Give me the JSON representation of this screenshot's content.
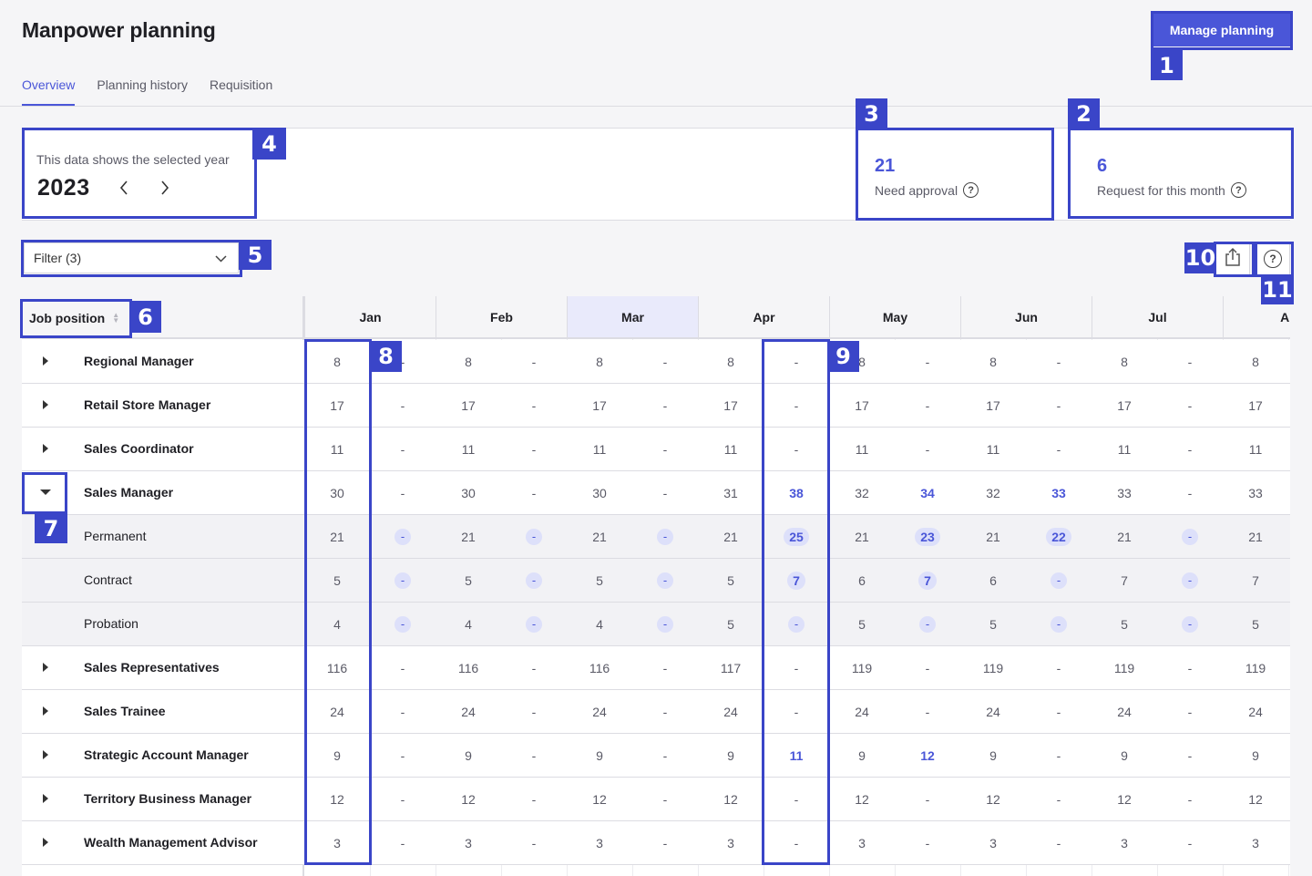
{
  "header": {
    "title": "Manpower planning",
    "manage_button": "Manage planning"
  },
  "tabs": [
    {
      "label": "Overview",
      "active": true
    },
    {
      "label": "Planning history",
      "active": false
    },
    {
      "label": "Requisition",
      "active": false
    }
  ],
  "year_selector": {
    "caption": "This data shows the selected year",
    "year": "2023",
    "prev_icon": "chevron-left-icon",
    "next_icon": "chevron-right-icon"
  },
  "stats": [
    {
      "value": "21",
      "label": "Need approval",
      "icon": "help-icon"
    },
    {
      "value": "6",
      "label": "Request for this month",
      "icon": "help-icon"
    }
  ],
  "filter": {
    "label": "Filter (3)",
    "icon": "chevron-down-icon"
  },
  "toolbar": {
    "export_icon": "export-icon",
    "help_icon": "help-icon"
  },
  "table": {
    "position_header": "Job position",
    "months": [
      "Jan",
      "Feb",
      "Mar",
      "Apr",
      "May",
      "Jun",
      "Jul",
      "Au"
    ],
    "highlight_month": "Mar",
    "rows": [
      {
        "label": "Regional Manager",
        "type": "parent",
        "expanded": false,
        "cells": [
          "8",
          "-",
          "8",
          "-",
          "8",
          "-",
          "8",
          "-",
          "8",
          "-",
          "8",
          "-",
          "8",
          "-",
          "8"
        ]
      },
      {
        "label": "Retail Store Manager",
        "type": "parent",
        "expanded": false,
        "cells": [
          "17",
          "-",
          "17",
          "-",
          "17",
          "-",
          "17",
          "-",
          "17",
          "-",
          "17",
          "-",
          "17",
          "-",
          "17"
        ]
      },
      {
        "label": "Sales Coordinator",
        "type": "parent",
        "expanded": false,
        "cells": [
          "11",
          "-",
          "11",
          "-",
          "11",
          "-",
          "11",
          "-",
          "11",
          "-",
          "11",
          "-",
          "11",
          "-",
          "11"
        ]
      },
      {
        "label": "Sales Manager",
        "type": "parent",
        "expanded": true,
        "cells": [
          "30",
          "-",
          "30",
          "-",
          "30",
          "-",
          "31",
          "38",
          "32",
          "34",
          "32",
          "33",
          "33",
          "-",
          "33"
        ]
      },
      {
        "label": "Permanent",
        "type": "child",
        "cells": [
          "21",
          "-",
          "21",
          "-",
          "21",
          "-",
          "21",
          "25",
          "21",
          "23",
          "21",
          "22",
          "21",
          "-",
          "21"
        ]
      },
      {
        "label": "Contract",
        "type": "child",
        "cells": [
          "5",
          "-",
          "5",
          "-",
          "5",
          "-",
          "5",
          "7",
          "6",
          "7",
          "6",
          "-",
          "7",
          "-",
          "7"
        ]
      },
      {
        "label": "Probation",
        "type": "child",
        "cells": [
          "4",
          "-",
          "4",
          "-",
          "4",
          "-",
          "5",
          "-",
          "5",
          "-",
          "5",
          "-",
          "5",
          "-",
          "5"
        ]
      },
      {
        "label": "Sales Representatives",
        "type": "parent",
        "expanded": false,
        "cells": [
          "116",
          "-",
          "116",
          "-",
          "116",
          "-",
          "117",
          "-",
          "119",
          "-",
          "119",
          "-",
          "119",
          "-",
          "119"
        ]
      },
      {
        "label": "Sales Trainee",
        "type": "parent",
        "expanded": false,
        "cells": [
          "24",
          "-",
          "24",
          "-",
          "24",
          "-",
          "24",
          "-",
          "24",
          "-",
          "24",
          "-",
          "24",
          "-",
          "24"
        ]
      },
      {
        "label": "Strategic Account Manager",
        "type": "parent",
        "expanded": false,
        "cells": [
          "9",
          "-",
          "9",
          "-",
          "9",
          "-",
          "9",
          "11",
          "9",
          "12",
          "9",
          "-",
          "9",
          "-",
          "9"
        ]
      },
      {
        "label": "Territory Business Manager",
        "type": "parent",
        "expanded": false,
        "cells": [
          "12",
          "-",
          "12",
          "-",
          "12",
          "-",
          "12",
          "-",
          "12",
          "-",
          "12",
          "-",
          "12",
          "-",
          "12"
        ]
      },
      {
        "label": "Wealth Management Advisor",
        "type": "parent",
        "expanded": false,
        "cells": [
          "3",
          "-",
          "3",
          "-",
          "3",
          "-",
          "3",
          "-",
          "3",
          "-",
          "3",
          "-",
          "3",
          "-",
          "3"
        ]
      }
    ]
  },
  "annotations": [
    {
      "id": "1"
    },
    {
      "id": "2"
    },
    {
      "id": "3"
    },
    {
      "id": "4"
    },
    {
      "id": "5"
    },
    {
      "id": "6"
    },
    {
      "id": "7"
    },
    {
      "id": "8"
    },
    {
      "id": "9"
    },
    {
      "id": "10"
    },
    {
      "id": "11"
    }
  ],
  "colors": {
    "accent": "#4a56d8",
    "annotation": "#3a45c8",
    "pill_bg": "#dde0fa"
  }
}
